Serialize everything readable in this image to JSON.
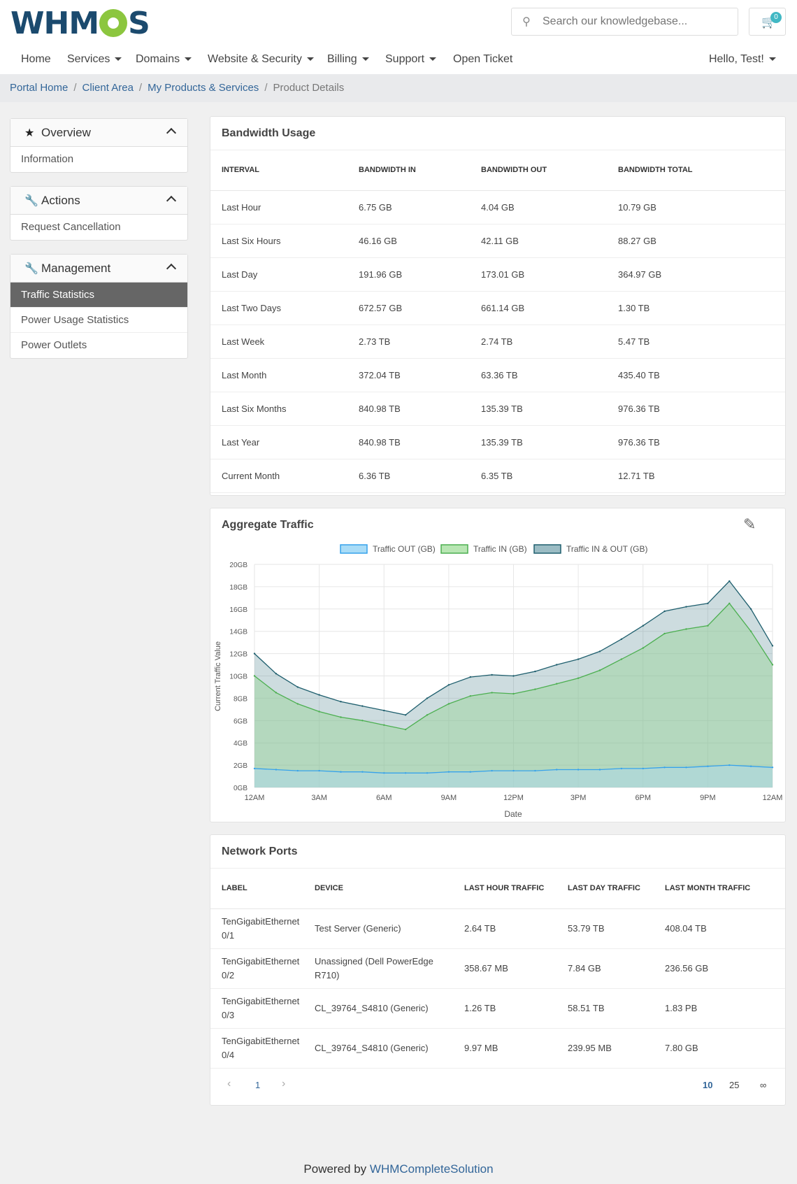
{
  "brand": {
    "logo_text_left": "WHM",
    "logo_text_right": "S"
  },
  "search": {
    "placeholder": "Search our knowledgebase..."
  },
  "cart": {
    "count": "0"
  },
  "nav": {
    "items": [
      "Home",
      "Services",
      "Domains",
      "Website & Security",
      "Billing",
      "Support",
      "Open Ticket"
    ],
    "user": "Hello, Test!"
  },
  "breadcrumb": [
    "Portal Home",
    "Client Area",
    "My Products & Services",
    "Product Details"
  ],
  "sidebar": {
    "overview": {
      "title": "Overview",
      "items": [
        "Information"
      ]
    },
    "actions": {
      "title": "Actions",
      "items": [
        "Request Cancellation"
      ]
    },
    "management": {
      "title": "Management",
      "items": [
        "Traffic Statistics",
        "Power Usage Statistics",
        "Power Outlets"
      ]
    }
  },
  "bandwidth": {
    "title": "Bandwidth Usage",
    "headers": [
      "Interval",
      "Bandwidth In",
      "Bandwidth Out",
      "Bandwidth Total"
    ],
    "rows": [
      [
        "Last Hour",
        "6.75 GB",
        "4.04 GB",
        "10.79 GB"
      ],
      [
        "Last Six Hours",
        "46.16 GB",
        "42.11 GB",
        "88.27 GB"
      ],
      [
        "Last Day",
        "191.96 GB",
        "173.01 GB",
        "364.97 GB"
      ],
      [
        "Last Two Days",
        "672.57 GB",
        "661.14 GB",
        "1.30 TB"
      ],
      [
        "Last Week",
        "2.73 TB",
        "2.74 TB",
        "5.47 TB"
      ],
      [
        "Last Month",
        "372.04 TB",
        "63.36 TB",
        "435.40 TB"
      ],
      [
        "Last Six Months",
        "840.98 TB",
        "135.39 TB",
        "976.36 TB"
      ],
      [
        "Last Year",
        "840.98 TB",
        "135.39 TB",
        "976.36 TB"
      ],
      [
        "Current Month",
        "6.36 TB",
        "6.35 TB",
        "12.71 TB"
      ]
    ]
  },
  "aggregate": {
    "title": "Aggregate Traffic"
  },
  "chart_data": {
    "type": "area",
    "x": [
      "12AM",
      "1AM",
      "2AM",
      "3AM",
      "4AM",
      "5AM",
      "6AM",
      "7AM",
      "8AM",
      "9AM",
      "10AM",
      "11AM",
      "12PM",
      "1PM",
      "2PM",
      "3PM",
      "4PM",
      "5PM",
      "6PM",
      "7PM",
      "8PM",
      "9PM",
      "10PM",
      "11PM",
      "12AM"
    ],
    "xticks": [
      "12AM",
      "3AM",
      "6AM",
      "9AM",
      "12PM",
      "3PM",
      "6PM",
      "9PM",
      "12AM"
    ],
    "series": [
      {
        "name": "Traffic OUT (GB)",
        "color": "#36a2eb",
        "values": [
          1.7,
          1.6,
          1.5,
          1.5,
          1.4,
          1.4,
          1.3,
          1.3,
          1.3,
          1.4,
          1.4,
          1.5,
          1.5,
          1.5,
          1.6,
          1.6,
          1.6,
          1.7,
          1.7,
          1.8,
          1.8,
          1.9,
          2.0,
          1.9,
          1.8
        ]
      },
      {
        "name": "Traffic IN (GB)",
        "color": "#4caf50",
        "values": [
          10.0,
          8.5,
          7.5,
          6.8,
          6.3,
          6.0,
          5.6,
          5.2,
          6.5,
          7.5,
          8.2,
          8.5,
          8.4,
          8.8,
          9.3,
          9.8,
          10.5,
          11.5,
          12.5,
          13.8,
          14.2,
          14.5,
          16.5,
          14.0,
          11.0
        ]
      },
      {
        "name": "Traffic IN & OUT (GB)",
        "color": "#1f5f6e",
        "values": [
          12.0,
          10.2,
          9.0,
          8.3,
          7.7,
          7.3,
          6.9,
          6.5,
          8.0,
          9.2,
          9.9,
          10.1,
          10.0,
          10.4,
          11.0,
          11.5,
          12.2,
          13.3,
          14.5,
          15.8,
          16.2,
          16.5,
          18.5,
          16.0,
          12.7
        ]
      }
    ],
    "xlabel": "Date",
    "ylabel": "Current Traffic Value",
    "ylim": [
      0,
      20
    ],
    "yticks": [
      "0GB",
      "2GB",
      "4GB",
      "6GB",
      "8GB",
      "10GB",
      "12GB",
      "14GB",
      "16GB",
      "18GB",
      "20GB"
    ],
    "legend": "top",
    "grid": true
  },
  "ports": {
    "title": "Network Ports",
    "headers": [
      "Label",
      "Device",
      "Last Hour Traffic",
      "Last Day Traffic",
      "Last Month Traffic"
    ],
    "rows": [
      [
        "TenGigabitEthernet 0/1",
        "Test Server (Generic)",
        "2.64 TB",
        "53.79 TB",
        "408.04 TB"
      ],
      [
        "TenGigabitEthernet 0/2",
        "Unassigned (Dell PowerEdge R710)",
        "358.67 MB",
        "7.84 GB",
        "236.56 GB"
      ],
      [
        "TenGigabitEthernet 0/3",
        "CL_39764_S4810 (Generic)",
        "1.26 TB",
        "58.51 TB",
        "1.83 PB"
      ],
      [
        "TenGigabitEthernet 0/4",
        "CL_39764_S4810 (Generic)",
        "9.97 MB",
        "239.95 MB",
        "7.80 GB"
      ]
    ],
    "pager": {
      "prev": "‹",
      "page": "1",
      "next": "›",
      "sizes": [
        "10",
        "25",
        "∞"
      ]
    }
  },
  "footer": {
    "text": "Powered by ",
    "link": "WHMCompleteSolution"
  }
}
